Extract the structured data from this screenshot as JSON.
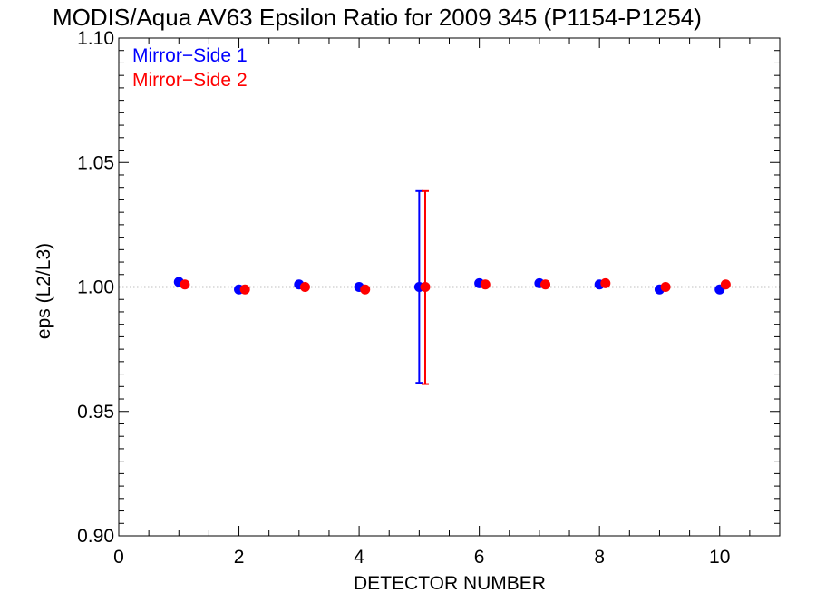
{
  "chart_data": {
    "type": "scatter",
    "title": "MODIS/Aqua AV63 Epsilon Ratio for 2009 345 (P1154-P1254)",
    "xlabel": "DETECTOR NUMBER",
    "ylabel": "eps (L2/L3)",
    "xlim": [
      0,
      11
    ],
    "ylim": [
      0.9,
      1.1
    ],
    "xticks": [
      "0",
      "2",
      "4",
      "6",
      "8",
      "10"
    ],
    "yticks": [
      "0.90",
      "0.95",
      "1.00",
      "1.05",
      "1.10"
    ],
    "reference_line": 1.0,
    "legend_position": "top-left",
    "series": [
      {
        "name": "Mirror−Side 1",
        "color": "#0000ff",
        "x": [
          1,
          2,
          3,
          4,
          5,
          6,
          7,
          8,
          9,
          10
        ],
        "y": [
          1.002,
          0.999,
          1.001,
          1.0,
          1.0,
          1.0015,
          1.0015,
          1.001,
          0.999,
          0.999
        ],
        "error_bars": [
          {
            "x": 5,
            "low": 0.9615,
            "high": 1.0385
          }
        ]
      },
      {
        "name": "Mirror−Side 2",
        "color": "#ff0000",
        "x": [
          1.1,
          2.1,
          3.1,
          4.1,
          5.1,
          6.1,
          7.1,
          8.1,
          9.1,
          10.1
        ],
        "y": [
          1.001,
          0.999,
          1.0,
          0.999,
          1.0,
          1.001,
          1.001,
          1.0015,
          1.0,
          1.001
        ],
        "error_bars": [
          {
            "x": 5.1,
            "low": 0.961,
            "high": 1.0385
          }
        ]
      }
    ]
  }
}
